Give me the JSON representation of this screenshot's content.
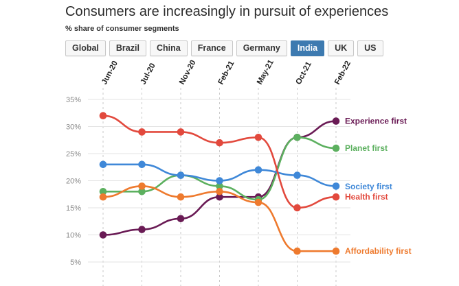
{
  "header": {
    "title": "Consumers are increasingly in pursuit of experiences",
    "subtitle": "% share of consumer segments"
  },
  "tabs": [
    {
      "label": "Global",
      "active": false
    },
    {
      "label": "Brazil",
      "active": false
    },
    {
      "label": "China",
      "active": false
    },
    {
      "label": "France",
      "active": false
    },
    {
      "label": "Germany",
      "active": false
    },
    {
      "label": "India",
      "active": true
    },
    {
      "label": "UK",
      "active": false
    },
    {
      "label": "US",
      "active": false
    }
  ],
  "chart_data": {
    "type": "line",
    "title": "Consumers are increasingly in pursuit of experiences",
    "subtitle": "% share of consumer segments",
    "x": [
      "Jun-20",
      "Jul-20",
      "Nov-20",
      "Feb-21",
      "May-21",
      "Oct-21",
      "Feb-22"
    ],
    "yticks": [
      "35%",
      "30%",
      "25%",
      "20%",
      "15%",
      "10%",
      "5%"
    ],
    "ytick_values": [
      35,
      30,
      25,
      20,
      15,
      10,
      5
    ],
    "ylim": [
      3,
      36
    ],
    "grid": true,
    "legend_placement": "right end labels",
    "series": [
      {
        "name": "Experience first",
        "color": "#6a1b55",
        "values": [
          10,
          11,
          13,
          17,
          17,
          28,
          31
        ]
      },
      {
        "name": "Planet first",
        "color": "#5cb05f",
        "values": [
          18,
          18,
          21,
          19,
          16.5,
          28,
          26
        ]
      },
      {
        "name": "Society first",
        "color": "#3f88d8",
        "values": [
          23,
          23,
          21,
          20,
          22,
          21,
          19
        ]
      },
      {
        "name": "Health first",
        "color": "#e2493d",
        "values": [
          32,
          29,
          29,
          27,
          28,
          15,
          17
        ]
      },
      {
        "name": "Affordability first",
        "color": "#ee7a2e",
        "values": [
          17,
          19,
          17,
          18,
          16,
          7,
          7
        ]
      }
    ]
  }
}
